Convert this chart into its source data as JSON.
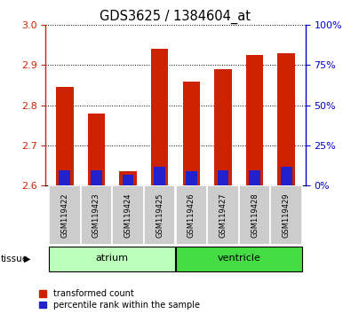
{
  "title": "GDS3625 / 1384604_at",
  "samples": [
    "GSM119422",
    "GSM119423",
    "GSM119424",
    "GSM119425",
    "GSM119426",
    "GSM119427",
    "GSM119428",
    "GSM119429"
  ],
  "tissue_groups": [
    {
      "label": "atrium",
      "samples": [
        0,
        1,
        2,
        3
      ],
      "color": "#bbffbb"
    },
    {
      "label": "ventricle",
      "samples": [
        4,
        5,
        6,
        7
      ],
      "color": "#44dd44"
    }
  ],
  "base": 2.6,
  "red_values": [
    2.845,
    2.78,
    2.635,
    2.94,
    2.86,
    2.89,
    2.925,
    2.93
  ],
  "blue_values": [
    2.637,
    2.637,
    2.627,
    2.647,
    2.635,
    2.638,
    2.638,
    2.647
  ],
  "ylim_left": [
    2.6,
    3.0
  ],
  "yticks_left": [
    2.6,
    2.7,
    2.8,
    2.9,
    3.0
  ],
  "ylim_right": [
    0,
    100
  ],
  "yticks_right": [
    0,
    25,
    50,
    75,
    100
  ],
  "yticklabels_right": [
    "0%",
    "25%",
    "50%",
    "75%",
    "100%"
  ],
  "red_color": "#cc2200",
  "blue_color": "#2222cc",
  "bar_width": 0.55,
  "blue_bar_width": 0.35,
  "grid_color": "#000000",
  "tick_color_left": "#cc2200",
  "tick_color_right": "#0000cc",
  "tissue_label": "tissue",
  "legend_red": "transformed count",
  "legend_blue": "percentile rank within the sample",
  "gray_bg": "#cccccc",
  "sample_fontsize": 6.0,
  "title_fontsize": 10.5
}
